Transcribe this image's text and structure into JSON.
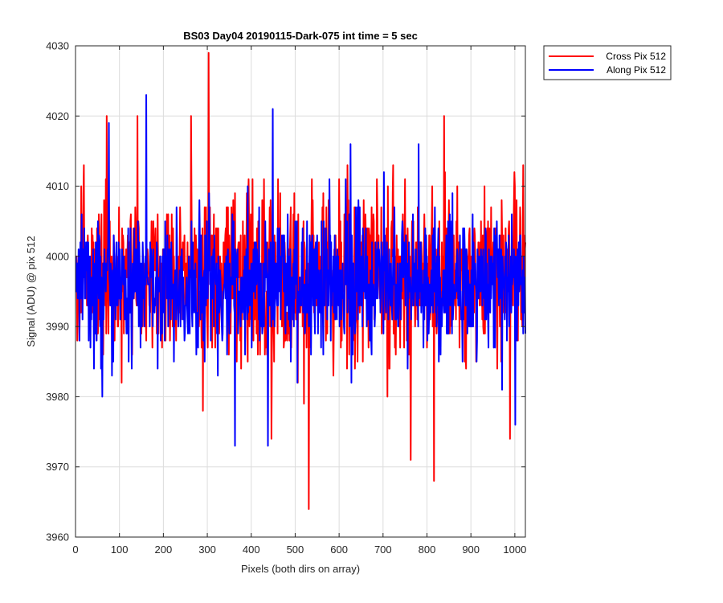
{
  "chart_data": {
    "type": "line",
    "title": "BS03 Day04 20190115-Dark-075 int time = 5 sec",
    "xlabel": "Pixels (both dirs on array)",
    "ylabel": "Signal (ADU) @ pix 512",
    "xlim": [
      0,
      1024
    ],
    "ylim": [
      3960,
      4030
    ],
    "xticks": [
      0,
      100,
      200,
      300,
      400,
      500,
      600,
      700,
      800,
      900,
      1000
    ],
    "yticks": [
      3960,
      3970,
      3980,
      3990,
      4000,
      4010,
      4020,
      4030
    ],
    "grid": true,
    "legend_position": "outside-top-right",
    "series": [
      {
        "name": "Cross Pix 512",
        "color": "#ff0000",
        "mean": 3997,
        "std": 6,
        "seed": 17,
        "extrema": [
          {
            "x": 18,
            "y": 4013
          },
          {
            "x": 70,
            "y": 4020
          },
          {
            "x": 140,
            "y": 4020
          },
          {
            "x": 262,
            "y": 4020
          },
          {
            "x": 302,
            "y": 4029
          },
          {
            "x": 306,
            "y": 3998
          },
          {
            "x": 445,
            "y": 3974
          },
          {
            "x": 530,
            "y": 3964
          },
          {
            "x": 762,
            "y": 3971
          },
          {
            "x": 815,
            "y": 3968
          },
          {
            "x": 838,
            "y": 4020
          },
          {
            "x": 988,
            "y": 3974
          },
          {
            "x": 1018,
            "y": 4013
          }
        ]
      },
      {
        "name": "Along Pix 512",
        "color": "#0000ff",
        "mean": 3996,
        "std": 5,
        "seed": 91,
        "extrema": [
          {
            "x": 75,
            "y": 4019
          },
          {
            "x": 160,
            "y": 4023
          },
          {
            "x": 362,
            "y": 3973
          },
          {
            "x": 448,
            "y": 4021
          },
          {
            "x": 437,
            "y": 3973
          },
          {
            "x": 625,
            "y": 4016
          },
          {
            "x": 780,
            "y": 4016
          },
          {
            "x": 1000,
            "y": 3976
          },
          {
            "x": 60,
            "y": 3980
          }
        ]
      }
    ]
  }
}
